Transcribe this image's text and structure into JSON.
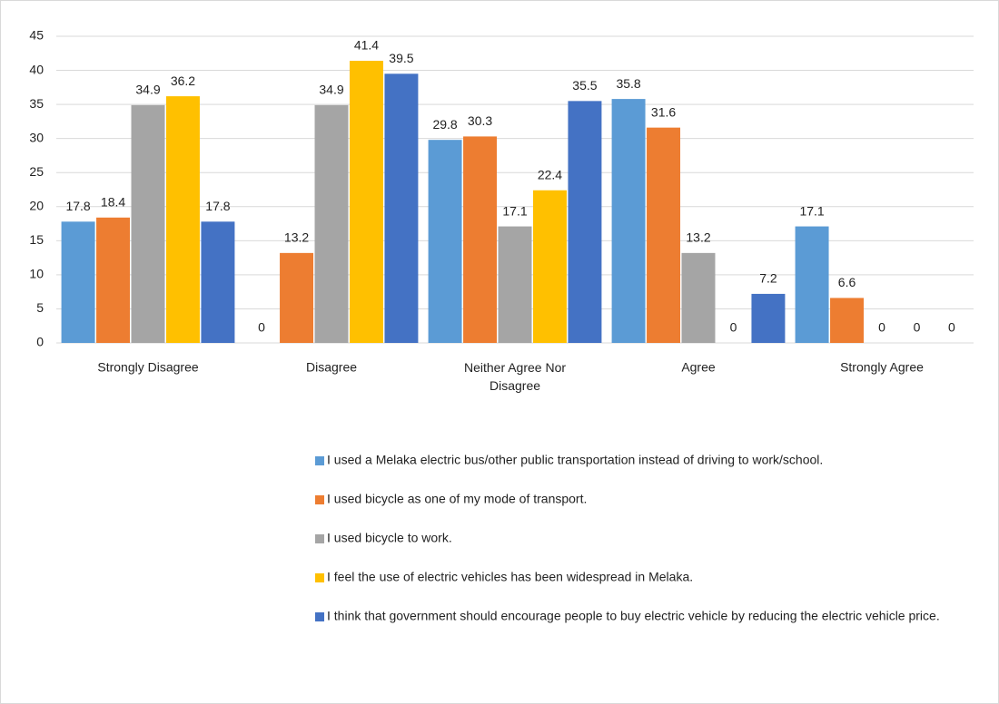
{
  "chart_data": {
    "type": "bar",
    "categories": [
      "Strongly Disagree",
      "Disagree",
      "Neither Agree Nor Disagree",
      "Agree",
      "Strongly Agree"
    ],
    "series": [
      {
        "name": "I used a Melaka electric bus/other public transportation instead of driving to work/school.",
        "color": "#5b9bd5",
        "values": [
          17.8,
          0,
          29.8,
          35.8,
          17.1
        ]
      },
      {
        "name": "I used bicycle as one of my mode of transport.",
        "color": "#ed7d31",
        "values": [
          18.4,
          13.2,
          30.3,
          31.6,
          6.6
        ]
      },
      {
        "name": "I used bicycle to work.",
        "color": "#a5a5a5",
        "values": [
          34.9,
          34.9,
          17.1,
          13.2,
          0
        ]
      },
      {
        "name": "I feel the use of electric vehicles has been widespread in Melaka.",
        "color": "#ffc000",
        "values": [
          36.2,
          41.4,
          22.4,
          0,
          0
        ]
      },
      {
        "name": "I think that government should encourage people to buy electric vehicle by reducing the electric vehicle price.",
        "color": "#4472c4",
        "values": [
          17.8,
          39.5,
          35.5,
          7.2,
          0
        ]
      }
    ],
    "ylim": [
      0,
      45
    ],
    "yticks": [
      0,
      5,
      10,
      15,
      20,
      25,
      30,
      35,
      40,
      45
    ],
    "grid": true,
    "legend": "bottom"
  }
}
